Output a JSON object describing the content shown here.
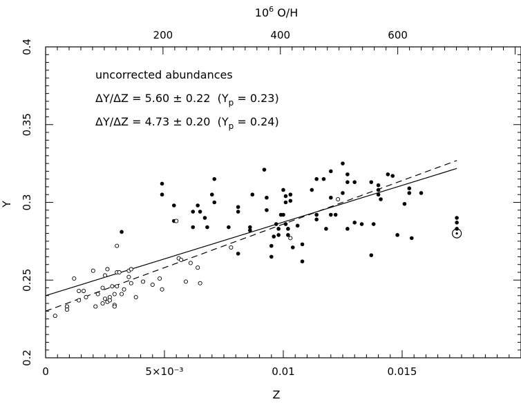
{
  "chart_data": {
    "type": "scatter",
    "title": "",
    "xlabel": "Z",
    "ylabel": "Y",
    "top_axis_label": "10⁶ O/H",
    "xlim": [
      0,
      0.02
    ],
    "ylim": [
      0.2,
      0.4
    ],
    "top_ticks": [
      {
        "value": 200,
        "label": "200"
      },
      {
        "value": 400,
        "label": "400"
      },
      {
        "value": 600,
        "label": "600"
      }
    ],
    "x_ticks": [
      {
        "value": 0,
        "label": "0"
      },
      {
        "value": 0.005,
        "label": "5×10⁻³"
      },
      {
        "value": 0.01,
        "label": "0.01"
      },
      {
        "value": 0.015,
        "label": "0.015"
      }
    ],
    "y_ticks": [
      {
        "value": 0.2,
        "label": "0.2"
      },
      {
        "value": 0.25,
        "label": "0.25"
      },
      {
        "value": 0.3,
        "label": "0.3"
      },
      {
        "value": 0.35,
        "label": "0.35"
      },
      {
        "value": 0.4,
        "label": "0.4"
      }
    ],
    "grid": false,
    "annotations": [
      "uncorrected abundances",
      "ΔY/ΔZ = 5.60 ± 0.22  (Yp = 0.23)",
      "ΔY/ΔZ = 4.73 ± 0.20  (Yp = 0.24)"
    ],
    "lines": [
      {
        "style": "dashed",
        "x": [
          0,
          0.0173
        ],
        "y": [
          0.23,
          0.3269
        ]
      },
      {
        "style": "solid",
        "x": [
          0,
          0.0173
        ],
        "y": [
          0.24,
          0.3218
        ]
      }
    ],
    "series": [
      {
        "marker": "filled",
        "points": [
          [
            0.0032,
            0.281
          ],
          [
            0.0049,
            0.312
          ],
          [
            0.0049,
            0.305
          ],
          [
            0.0054,
            0.298
          ],
          [
            0.0054,
            0.288
          ],
          [
            0.0062,
            0.294
          ],
          [
            0.0062,
            0.284
          ],
          [
            0.0064,
            0.298
          ],
          [
            0.0065,
            0.294
          ],
          [
            0.0067,
            0.29
          ],
          [
            0.0068,
            0.284
          ],
          [
            0.007,
            0.305
          ],
          [
            0.0071,
            0.315
          ],
          [
            0.0071,
            0.3
          ],
          [
            0.0077,
            0.284
          ],
          [
            0.0081,
            0.297
          ],
          [
            0.0081,
            0.294
          ],
          [
            0.0081,
            0.267
          ],
          [
            0.0087,
            0.305
          ],
          [
            0.0086,
            0.284
          ],
          [
            0.0086,
            0.282
          ],
          [
            0.0092,
            0.321
          ],
          [
            0.0093,
            0.303
          ],
          [
            0.0093,
            0.295
          ],
          [
            0.0095,
            0.265
          ],
          [
            0.0095,
            0.272
          ],
          [
            0.0096,
            0.278
          ],
          [
            0.0097,
            0.286
          ],
          [
            0.0098,
            0.279
          ],
          [
            0.0099,
            0.292
          ],
          [
            0.0098,
            0.283
          ],
          [
            0.01,
            0.308
          ],
          [
            0.0101,
            0.304
          ],
          [
            0.0101,
            0.3
          ],
          [
            0.0103,
            0.305
          ],
          [
            0.0103,
            0.301
          ],
          [
            0.01,
            0.292
          ],
          [
            0.0101,
            0.286
          ],
          [
            0.0102,
            0.283
          ],
          [
            0.0102,
            0.279
          ],
          [
            0.0104,
            0.271
          ],
          [
            0.0106,
            0.285
          ],
          [
            0.0108,
            0.262
          ],
          [
            0.0108,
            0.273
          ],
          [
            0.0112,
            0.308
          ],
          [
            0.0114,
            0.315
          ],
          [
            0.0114,
            0.292
          ],
          [
            0.0114,
            0.289
          ],
          [
            0.0117,
            0.315
          ],
          [
            0.0118,
            0.283
          ],
          [
            0.012,
            0.32
          ],
          [
            0.012,
            0.303
          ],
          [
            0.012,
            0.292
          ],
          [
            0.0122,
            0.292
          ],
          [
            0.0125,
            0.325
          ],
          [
            0.0125,
            0.306
          ],
          [
            0.0127,
            0.318
          ],
          [
            0.0127,
            0.313
          ],
          [
            0.0127,
            0.283
          ],
          [
            0.013,
            0.313
          ],
          [
            0.013,
            0.287
          ],
          [
            0.0133,
            0.286
          ],
          [
            0.0137,
            0.313
          ],
          [
            0.0137,
            0.266
          ],
          [
            0.0138,
            0.286
          ],
          [
            0.014,
            0.308
          ],
          [
            0.014,
            0.305
          ],
          [
            0.014,
            0.311
          ],
          [
            0.0141,
            0.302
          ],
          [
            0.0144,
            0.318
          ],
          [
            0.0146,
            0.317
          ],
          [
            0.0148,
            0.279
          ],
          [
            0.0151,
            0.299
          ],
          [
            0.0153,
            0.309
          ],
          [
            0.0153,
            0.306
          ],
          [
            0.0154,
            0.277
          ],
          [
            0.0158,
            0.306
          ],
          [
            0.0173,
            0.29
          ],
          [
            0.0173,
            0.287
          ],
          [
            0.0173,
            0.283
          ]
        ]
      },
      {
        "marker": "open",
        "points": [
          [
            0.0004,
            0.227
          ],
          [
            0.0009,
            0.233
          ],
          [
            0.0009,
            0.231
          ],
          [
            0.0012,
            0.251
          ],
          [
            0.0014,
            0.237
          ],
          [
            0.0014,
            0.243
          ],
          [
            0.0016,
            0.243
          ],
          [
            0.0017,
            0.239
          ],
          [
            0.002,
            0.256
          ],
          [
            0.0021,
            0.233
          ],
          [
            0.0022,
            0.241
          ],
          [
            0.0024,
            0.235
          ],
          [
            0.0024,
            0.245
          ],
          [
            0.0025,
            0.253
          ],
          [
            0.0025,
            0.238
          ],
          [
            0.0026,
            0.236
          ],
          [
            0.0026,
            0.257
          ],
          [
            0.0027,
            0.239
          ],
          [
            0.0027,
            0.237
          ],
          [
            0.0028,
            0.246
          ],
          [
            0.0029,
            0.234
          ],
          [
            0.0029,
            0.233
          ],
          [
            0.0029,
            0.241
          ],
          [
            0.003,
            0.255
          ],
          [
            0.003,
            0.272
          ],
          [
            0.003,
            0.246
          ],
          [
            0.0031,
            0.255
          ],
          [
            0.0032,
            0.241
          ],
          [
            0.0033,
            0.244
          ],
          [
            0.0035,
            0.252
          ],
          [
            0.0035,
            0.256
          ],
          [
            0.0036,
            0.248
          ],
          [
            0.0036,
            0.257
          ],
          [
            0.0038,
            0.239
          ],
          [
            0.0041,
            0.249
          ],
          [
            0.0045,
            0.247
          ],
          [
            0.0048,
            0.251
          ],
          [
            0.0049,
            0.244
          ],
          [
            0.0055,
            0.288
          ],
          [
            0.0056,
            0.264
          ],
          [
            0.0057,
            0.263
          ],
          [
            0.0059,
            0.249
          ],
          [
            0.0061,
            0.261
          ],
          [
            0.0064,
            0.258
          ],
          [
            0.0065,
            0.248
          ],
          [
            0.0078,
            0.271
          ],
          [
            0.0103,
            0.277
          ],
          [
            0.0123,
            0.302
          ]
        ]
      },
      {
        "marker": "sun",
        "points": [
          [
            0.0173,
            0.28
          ]
        ]
      }
    ]
  }
}
